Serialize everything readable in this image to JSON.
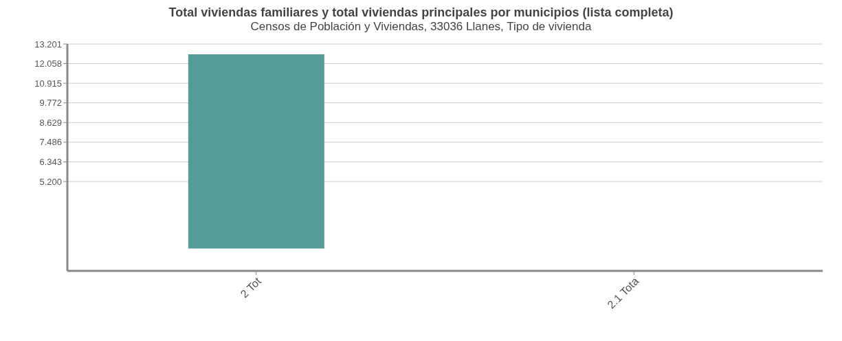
{
  "chart_data": {
    "type": "bar",
    "title": "Total viviendas familiares y total viviendas principales por municipios (lista completa)",
    "subtitle": "Censos de Población y Viviendas, 33036  Llanes, Tipo de vivienda",
    "categories": [
      "2 Tot",
      "2.1 Tota"
    ],
    "values": [
      11.3,
      null
    ],
    "base": [
      1.3,
      null
    ],
    "color": "#559b97",
    "ylim": [
      0,
      13.201
    ],
    "yticks": [
      {
        "value": 5.2,
        "label": "5.200"
      },
      {
        "value": 6.343,
        "label": "6.343"
      },
      {
        "value": 7.486,
        "label": "7.486"
      },
      {
        "value": 8.629,
        "label": "8.629"
      },
      {
        "value": 9.772,
        "label": "9.772"
      },
      {
        "value": 10.915,
        "label": "10.915"
      },
      {
        "value": 12.058,
        "label": "12.058"
      },
      {
        "value": 13.201,
        "label": "13.201"
      }
    ],
    "grid": "y"
  }
}
